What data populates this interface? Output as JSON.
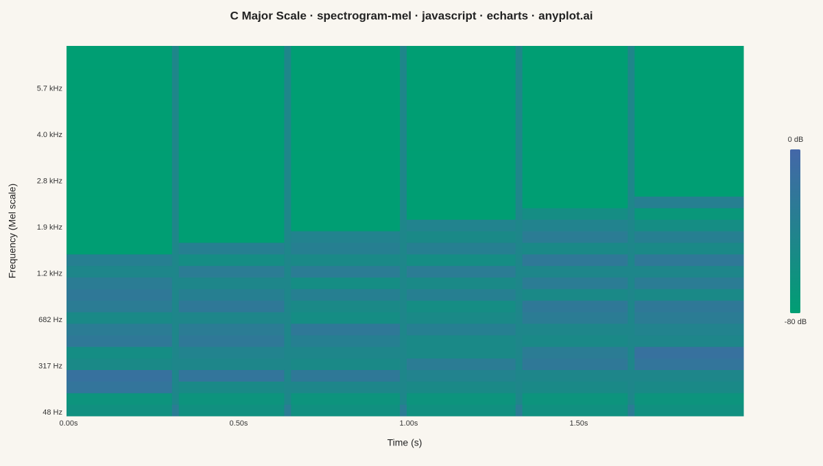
{
  "chart_data": {
    "type": "heatmap",
    "title": "C Major Scale · spectrogram-mel · javascript · echarts · anyplot.ai",
    "x_label": "Time (s)",
    "y_label": "Frequency (Mel scale)",
    "x": [
      0,
      0.31,
      0.33,
      0.64,
      0.66,
      0.98,
      1.0,
      1.32,
      1.34,
      1.65,
      1.67
    ],
    "xlim": [
      0,
      1.99
    ],
    "xticks": [
      {
        "value": 0,
        "label": "0.00s"
      },
      {
        "value": 0.5,
        "label": "0.50s"
      },
      {
        "value": 1,
        "label": "1.00s"
      },
      {
        "value": 1.5,
        "label": "1.50s"
      }
    ],
    "ylim": [
      0,
      32
    ],
    "yticks": [
      {
        "value": 0.3,
        "label": "48 Hz"
      },
      {
        "value": 4.3,
        "label": "317 Hz"
      },
      {
        "value": 8.3,
        "label": "682 Hz"
      },
      {
        "value": 12.3,
        "label": "1.2 kHz"
      },
      {
        "value": 16.3,
        "label": "1.9 kHz"
      },
      {
        "value": 20.3,
        "label": "2.8 kHz"
      },
      {
        "value": 24.3,
        "label": "4.0 kHz"
      },
      {
        "value": 28.3,
        "label": "5.7 kHz"
      }
    ],
    "values": [
      [
        -60,
        -65,
        -20,
        -15,
        -50,
        -55,
        -25,
        -30,
        -50,
        -30,
        -25,
        -30,
        -45,
        -35,
        -80,
        -80,
        -80,
        -80,
        -80,
        -80,
        -80,
        -80,
        -80,
        -80,
        -80,
        -80,
        -80,
        -80,
        -80,
        -80,
        -80,
        -80
      ],
      [
        -30,
        -45,
        -45,
        -45,
        -45,
        -45,
        -45,
        -45,
        -45,
        -45,
        -45,
        -45,
        -45,
        -45,
        -45,
        -45,
        -45,
        -45,
        -45,
        -45,
        -45,
        -45,
        -45,
        -45,
        -45,
        -45,
        -45,
        -45,
        -45,
        -45,
        -45,
        -45
      ],
      [
        -60,
        -65,
        -50,
        -20,
        -45,
        -40,
        -25,
        -30,
        -45,
        -25,
        -35,
        -45,
        -30,
        -55,
        -35,
        -80,
        -80,
        -80,
        -80,
        -80,
        -80,
        -80,
        -80,
        -80,
        -80,
        -80,
        -80,
        -80,
        -80,
        -80,
        -80,
        -80
      ],
      [
        -30,
        -45,
        -45,
        -45,
        -45,
        -45,
        -45,
        -45,
        -45,
        -45,
        -45,
        -45,
        -45,
        -45,
        -45,
        -45,
        -45,
        -45,
        -45,
        -45,
        -45,
        -45,
        -45,
        -45,
        -45,
        -45,
        -45,
        -45,
        -45,
        -45,
        -45,
        -45
      ],
      [
        -60,
        -65,
        -45,
        -25,
        -50,
        -45,
        -35,
        -25,
        -55,
        -50,
        -35,
        -55,
        -30,
        -50,
        -35,
        -40,
        -80,
        -80,
        -80,
        -80,
        -80,
        -80,
        -80,
        -80,
        -80,
        -80,
        -80,
        -80,
        -80,
        -80,
        -80,
        -80
      ],
      [
        -30,
        -45,
        -45,
        -45,
        -45,
        -45,
        -45,
        -45,
        -45,
        -45,
        -45,
        -45,
        -45,
        -45,
        -45,
        -45,
        -45,
        -45,
        -45,
        -45,
        -45,
        -45,
        -45,
        -45,
        -45,
        -45,
        -45,
        -45,
        -45,
        -45,
        -45,
        -45
      ],
      [
        -60,
        -65,
        -50,
        -40,
        -30,
        -50,
        -50,
        -35,
        -50,
        -55,
        -35,
        -50,
        -30,
        -55,
        -35,
        -50,
        -40,
        -80,
        -80,
        -80,
        -80,
        -80,
        -80,
        -80,
        -80,
        -80,
        -80,
        -80,
        -80,
        -80,
        -80,
        -80
      ],
      [
        -30,
        -45,
        -45,
        -45,
        -45,
        -45,
        -45,
        -45,
        -45,
        -45,
        -45,
        -45,
        -45,
        -45,
        -45,
        -45,
        -45,
        -45,
        -45,
        -45,
        -45,
        -45,
        -45,
        -45,
        -45,
        -45,
        -45,
        -45,
        -45,
        -45,
        -45,
        -45
      ],
      [
        -60,
        -65,
        -50,
        -45,
        -25,
        -30,
        -50,
        -45,
        -30,
        -25,
        -50,
        -30,
        -45,
        -25,
        -50,
        -30,
        -40,
        -55,
        -80,
        -80,
        -80,
        -80,
        -80,
        -80,
        -80,
        -80,
        -80,
        -80,
        -80,
        -80,
        -80,
        -80
      ],
      [
        -30,
        -45,
        -45,
        -45,
        -45,
        -45,
        -45,
        -45,
        -45,
        -45,
        -45,
        -45,
        -45,
        -45,
        -45,
        -45,
        -45,
        -45,
        -45,
        -45,
        -45,
        -45,
        -45,
        -45,
        -45,
        -45,
        -45,
        -45,
        -45,
        -45,
        -45,
        -45
      ],
      [
        -60,
        -65,
        -50,
        -45,
        -20,
        -15,
        -45,
        -40,
        -30,
        -25,
        -50,
        -30,
        -45,
        -25,
        -50,
        -35,
        -55,
        -70,
        -35,
        -80,
        -80,
        -80,
        -80,
        -80,
        -80,
        -80,
        -80,
        -80,
        -80,
        -80,
        -80,
        -80
      ]
    ],
    "zlim": [
      -80,
      0
    ],
    "colors": [
      "#009e73",
      "#4467a8"
    ],
    "colorbar_ticks": [
      {
        "value": 0,
        "label": "0 dB"
      },
      {
        "value": -80,
        "label": "-80 dB"
      }
    ]
  }
}
